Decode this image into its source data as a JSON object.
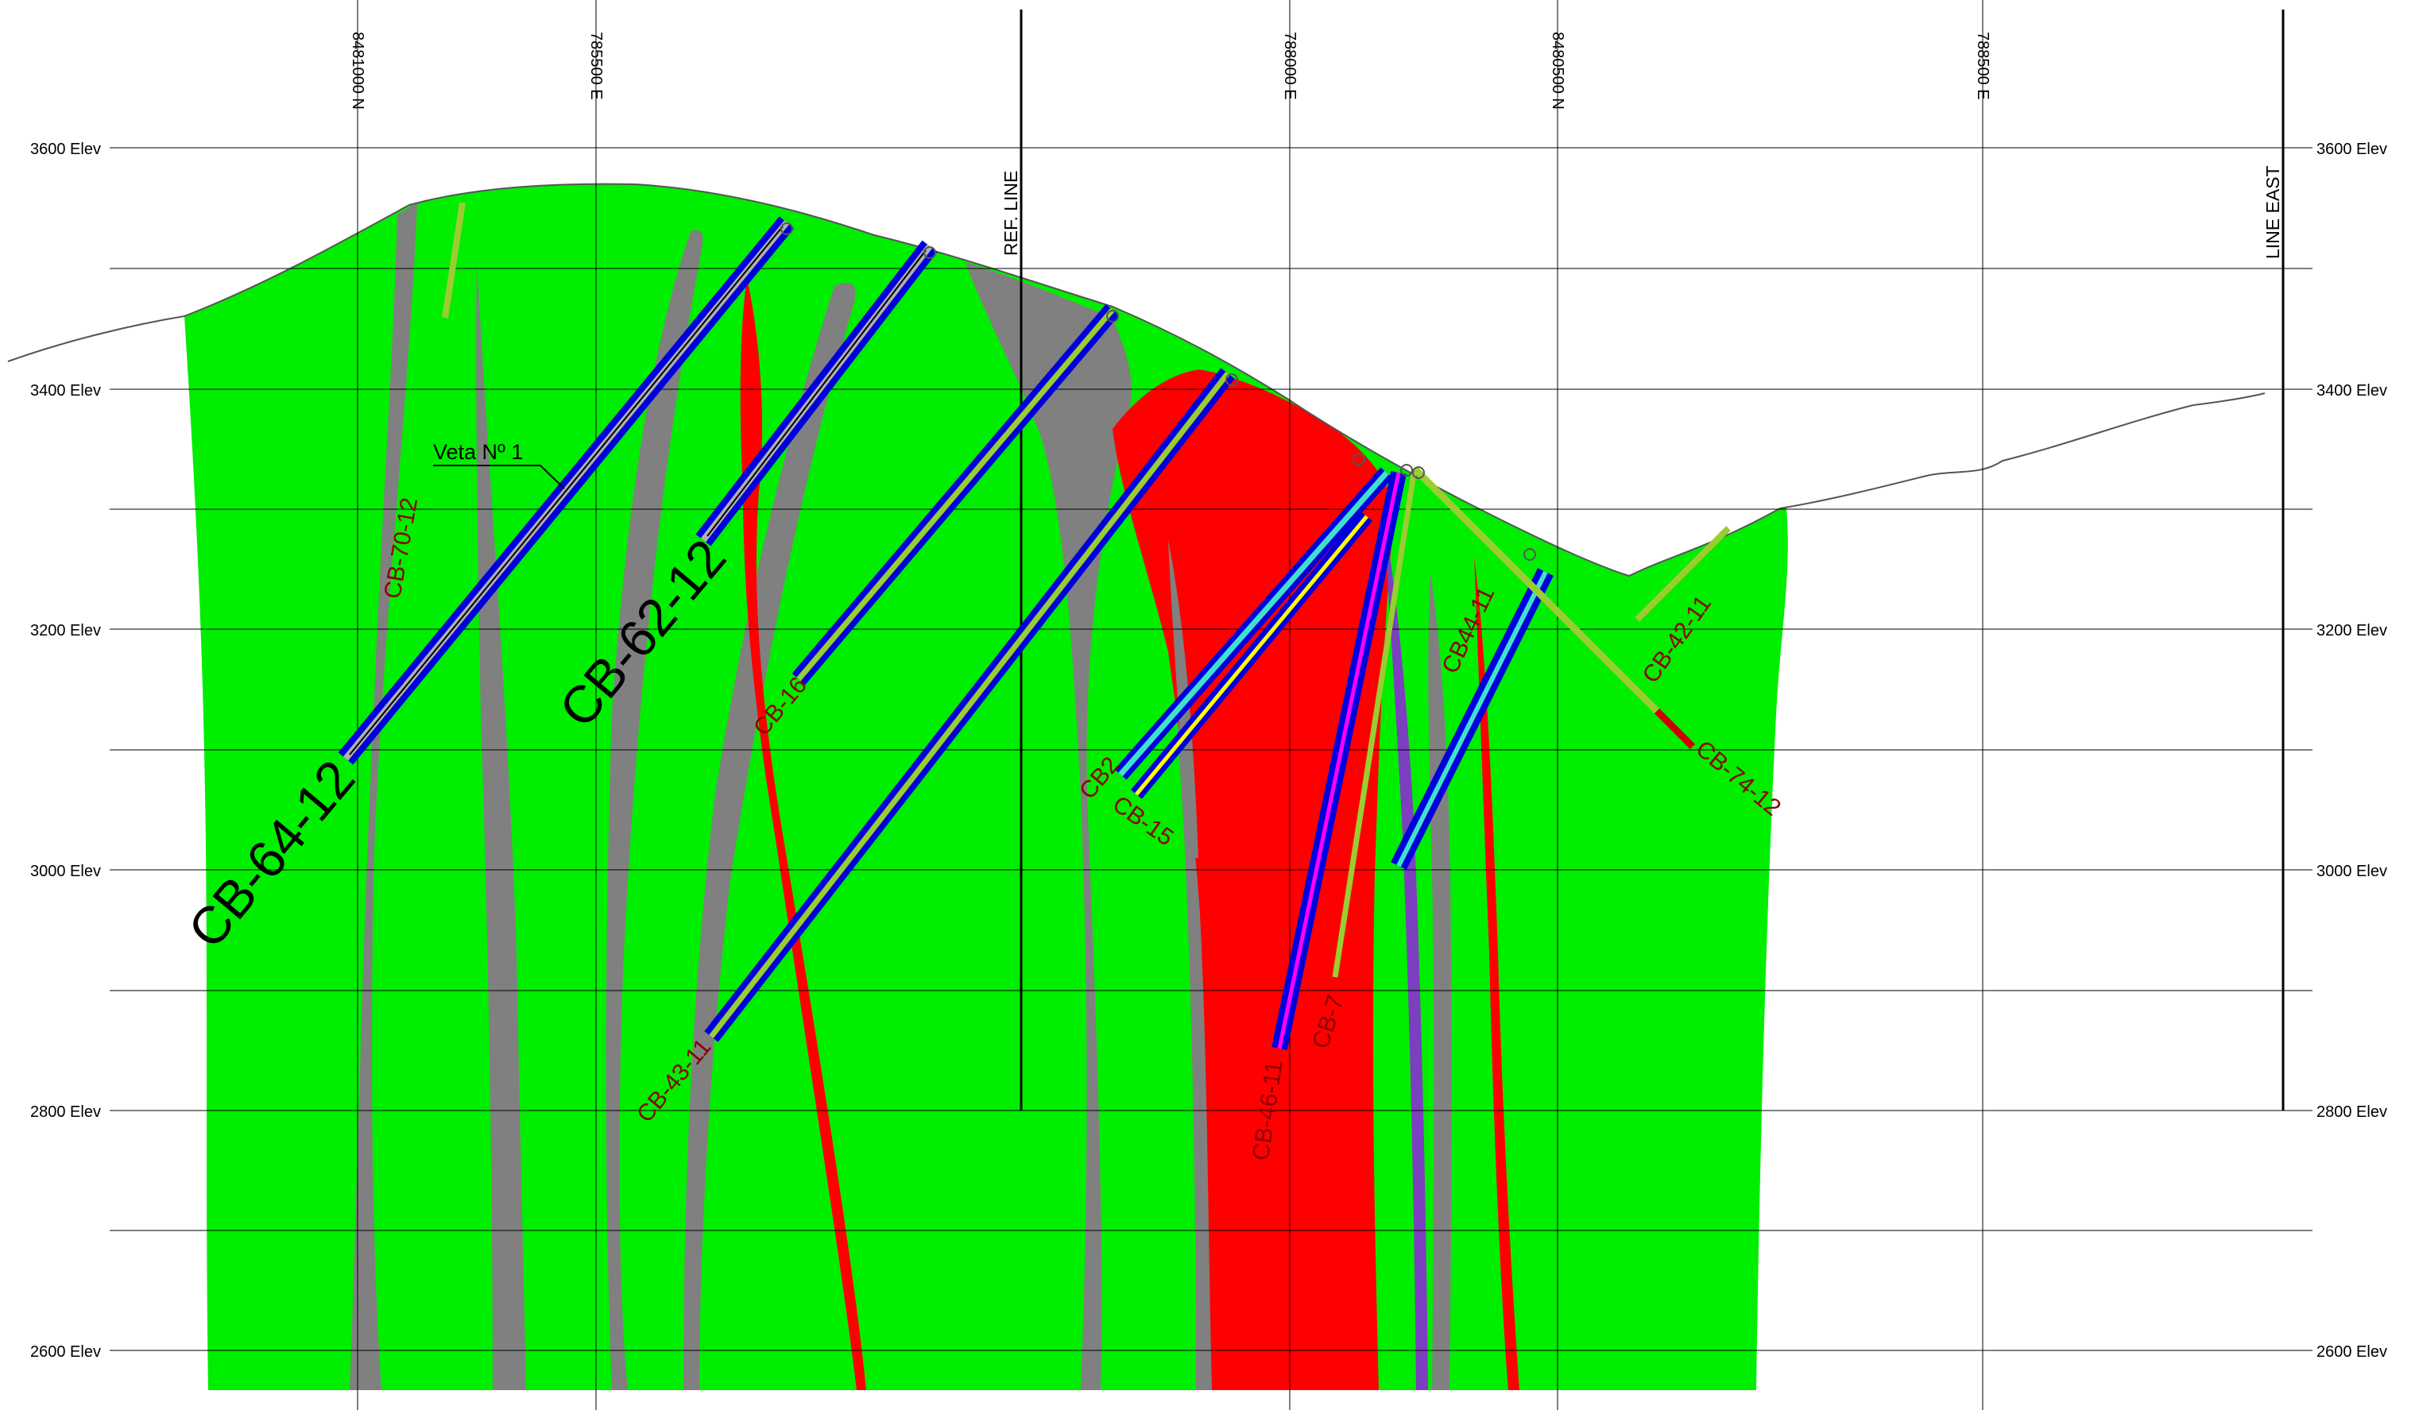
{
  "section": {
    "elevation_labels": {
      "e3600": "3600 Elev",
      "e3400": "3400 Elev",
      "e3200": "3200 Elev",
      "e3000": "3000 Elev",
      "e2800": "2800 Elev",
      "e2600": "2600 Elev"
    },
    "grid_labels": {
      "g1": "8481000 N",
      "g2": "785500 E",
      "g3": "788000 E",
      "g4": "8480500 N",
      "g5": "788500 E"
    },
    "reference_lines": {
      "ref": "REF. LINE",
      "east": "LINE EAST"
    },
    "vein_label": "Veta Nº 1",
    "drill_holes": {
      "cb64": "CB-64-12",
      "cb62": "CB-62-12",
      "cb70": "CB-70-12",
      "cb16": "CB-16",
      "cb43": "CB-43-11",
      "cb2": "CB2",
      "cb15": "CB-15",
      "cb46": "CB-46-11",
      "cb7": "CB-7",
      "cb44": "CB44-11",
      "cb42": "CB-42-11",
      "cb74": "CB-74-12"
    },
    "colors": {
      "host_rock": "#00ee00",
      "dike": "#808080",
      "mineralized": "#ff0000",
      "drill_trace": "#0000dd",
      "vein_purple": "#7b3fbf",
      "topography": "#555555"
    }
  }
}
